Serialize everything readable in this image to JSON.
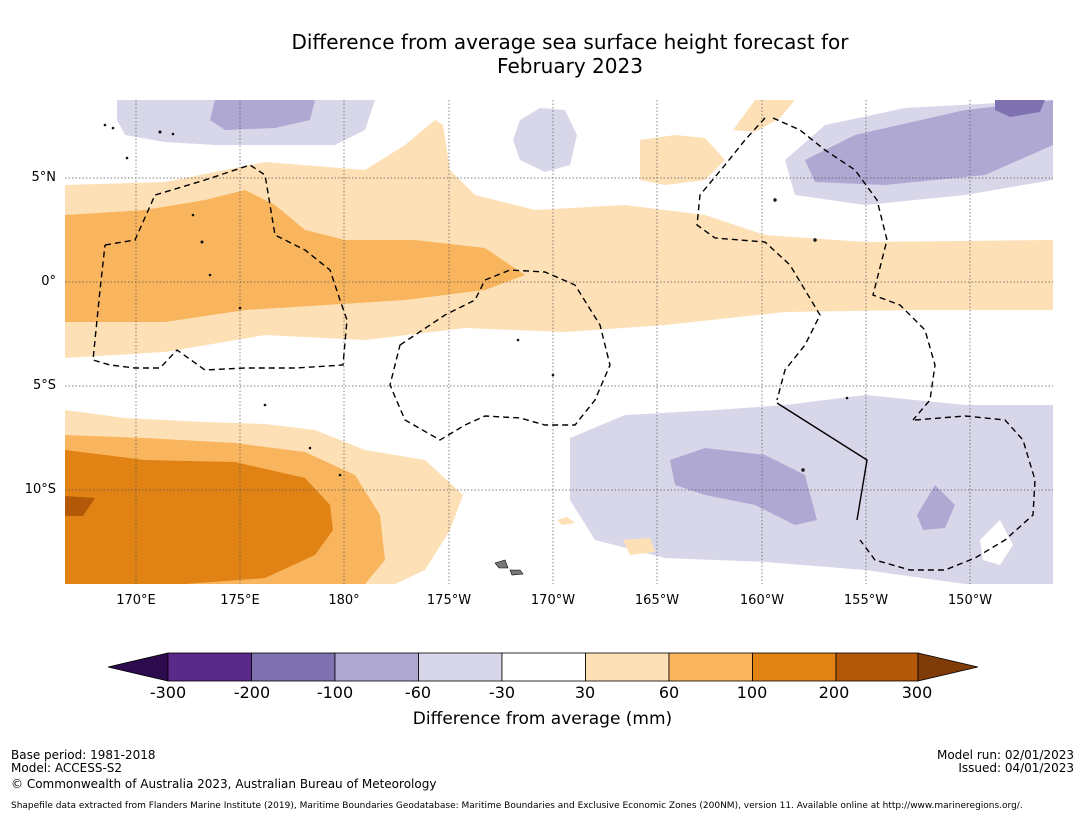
{
  "title_line1": "Difference from average sea surface height forecast for",
  "title_line2": "February 2023",
  "map": {
    "lat_labels": [
      "5°N",
      "0°",
      "5°S",
      "10°S"
    ],
    "lon_labels": [
      "170°E",
      "175°E",
      "180°",
      "175°W",
      "170°W",
      "165°W",
      "160°W",
      "155°W",
      "150°W"
    ],
    "colors": {
      "neg300": "#2d0b4e",
      "neg200": "#5a2a8a",
      "neg100": "#8072b0",
      "neg60": "#aea8d3",
      "neg30": "#d8d7ea",
      "zero": "#ffffff",
      "pos30": "#fde0b5",
      "pos60": "#f9b55d",
      "pos100": "#e08214",
      "pos200": "#b35806",
      "pos300": "#7f3b08"
    }
  },
  "colorbar": {
    "ticks": [
      "-300",
      "-200",
      "-100",
      "-60",
      "-30",
      "30",
      "60",
      "100",
      "200",
      "300"
    ],
    "label": "Difference from average (mm)"
  },
  "footer": {
    "base_period": "Base period: 1981-2018",
    "model": "Model: ACCESS-S2",
    "copyright": "© Commonwealth of Australia 2023, Australian Bureau of Meteorology",
    "model_run": "Model run: 02/01/2023",
    "issued": "Issued: 04/01/2023",
    "shapefile": "Shapefile data extracted from Flanders Marine Institute (2019), Maritime Boundaries Geodatabase: Maritime Boundaries and Exclusive Economic Zones (200NM), version 11. Available online at http://www.marineregions.org/."
  }
}
